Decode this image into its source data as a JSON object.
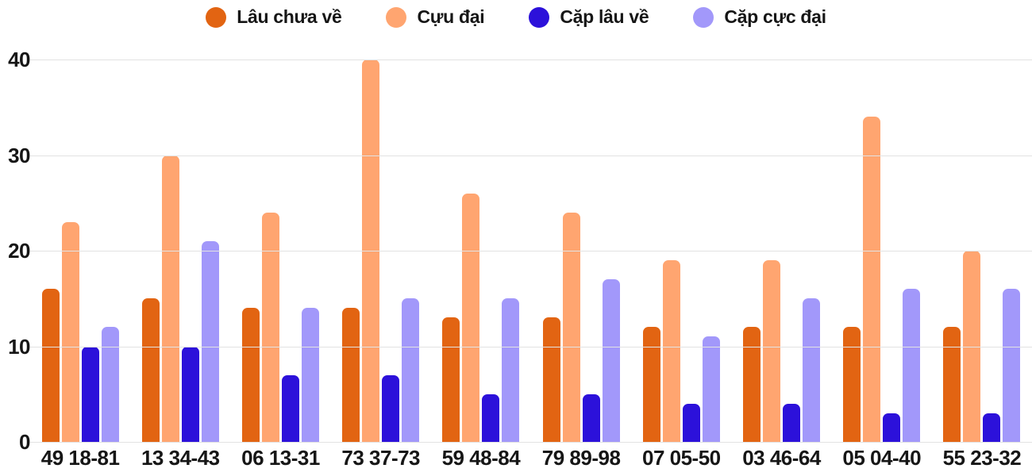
{
  "colors": {
    "background": "#ffffff",
    "text": "#161616",
    "gridline": "#e2e2e2"
  },
  "chart_data": {
    "type": "bar",
    "title": "",
    "xlabel": "",
    "ylabel": "",
    "legend_position": "top",
    "grid": "horizontal",
    "categories": [
      "49 18-81",
      "13 34-43",
      "06 13-31",
      "73 37-73",
      "59 48-84",
      "79 89-98",
      "07 05-50",
      "03 46-64",
      "05 04-40",
      "55 23-32"
    ],
    "series": [
      {
        "name": "Lâu chưa về",
        "color": "#e26412",
        "values": [
          16,
          15,
          14,
          14,
          13,
          13,
          12,
          12,
          12,
          12
        ]
      },
      {
        "name": "Cựu đại",
        "color": "#ffa570",
        "values": [
          23,
          30,
          24,
          40,
          26,
          24,
          19,
          19,
          34,
          20
        ]
      },
      {
        "name": "Cặp lâu về",
        "color": "#2c11da",
        "values": [
          10,
          10,
          7,
          7,
          5,
          5,
          4,
          4,
          3,
          3
        ]
      },
      {
        "name": "Cặp cực đại",
        "color": "#a298fa",
        "values": [
          12,
          21,
          14,
          15,
          15,
          17,
          11,
          15,
          16,
          16
        ]
      }
    ],
    "y_axis": {
      "min": 0,
      "max": 40,
      "ticks": [
        0,
        10,
        20,
        30,
        40
      ]
    }
  }
}
